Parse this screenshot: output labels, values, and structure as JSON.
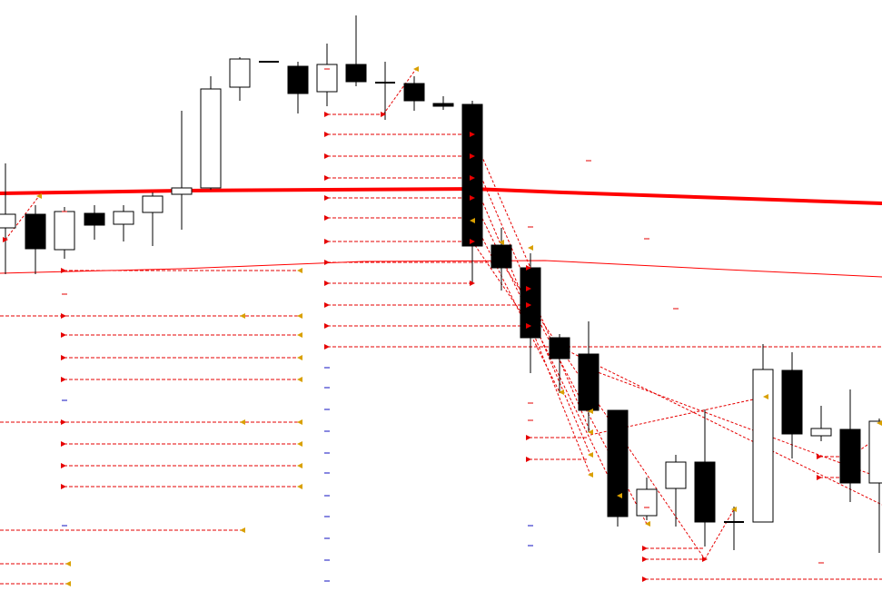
{
  "chart_data": {
    "type": "candlestick",
    "title": "",
    "xlabel": "",
    "ylabel": "",
    "grid": false,
    "legend": "none",
    "ylim": [
      0,
      651
    ],
    "candles": [
      {
        "x": 6,
        "open": 400,
        "close": 415,
        "high": 471,
        "low": 349
      },
      {
        "x": 39,
        "open": 415,
        "close": 377,
        "high": 425,
        "low": 349
      },
      {
        "x": 71,
        "open": 376,
        "close": 418,
        "high": 423,
        "low": 366
      },
      {
        "x": 104,
        "open": 416,
        "close": 403,
        "high": 425,
        "low": 387
      },
      {
        "x": 136,
        "open": 404,
        "close": 418,
        "high": 425,
        "low": 385
      },
      {
        "x": 168,
        "open": 417,
        "close": 435,
        "high": 439,
        "low": 380
      },
      {
        "x": 200,
        "open": 437,
        "close": 444,
        "high": 529,
        "low": 398
      },
      {
        "x": 232,
        "open": 444,
        "close": 553,
        "high": 567,
        "low": 442
      },
      {
        "x": 264,
        "open": 555,
        "close": 586,
        "high": 588,
        "low": 540
      },
      {
        "x": 296,
        "open": 583,
        "close": 583,
        "high": 583,
        "low": 583
      },
      {
        "x": 328,
        "open": 578,
        "close": 548,
        "high": 583,
        "low": 526
      },
      {
        "x": 360,
        "open": 550,
        "close": 580,
        "high": 603,
        "low": 534
      },
      {
        "x": 392,
        "open": 580,
        "close": 561,
        "high": 634,
        "low": 556
      },
      {
        "x": 424,
        "open": 560,
        "close": 560,
        "high": 583,
        "low": 519
      },
      {
        "x": 456,
        "open": 559,
        "close": 540,
        "high": 567,
        "low": 529
      },
      {
        "x": 488,
        "open": 537,
        "close": 534,
        "high": 545,
        "low": 530
      },
      {
        "x": 520,
        "open": 536,
        "close": 380,
        "high": 540,
        "low": 340
      },
      {
        "x": 552,
        "open": 381,
        "close": 356,
        "high": 400,
        "low": 331
      },
      {
        "x": 584,
        "open": 356,
        "close": 279,
        "high": 372,
        "low": 240
      },
      {
        "x": 616,
        "open": 279,
        "close": 256,
        "high": 283,
        "low": 218
      },
      {
        "x": 648,
        "open": 261,
        "close": 199,
        "high": 297,
        "low": 175
      },
      {
        "x": 680,
        "open": 199,
        "close": 82,
        "high": 199,
        "low": 71
      },
      {
        "x": 712,
        "open": 83,
        "close": 112,
        "high": 125,
        "low": 78
      },
      {
        "x": 744,
        "open": 113,
        "close": 142,
        "high": 150,
        "low": 71
      },
      {
        "x": 776,
        "open": 142,
        "close": 76,
        "high": 200,
        "low": 49
      },
      {
        "x": 808,
        "open": 76,
        "close": 76,
        "high": 93,
        "low": 45
      },
      {
        "x": 840,
        "open": 76,
        "close": 244,
        "high": 272,
        "low": 76
      },
      {
        "x": 872,
        "open": 243,
        "close": 173,
        "high": 263,
        "low": 146
      },
      {
        "x": 904,
        "open": 171,
        "close": 179,
        "high": 204,
        "low": 165
      },
      {
        "x": 936,
        "open": 178,
        "close": 119,
        "high": 222,
        "low": 98
      },
      {
        "x": 968,
        "open": 119,
        "close": 187,
        "high": 190,
        "low": 42
      }
    ],
    "series": [
      {
        "style": "thick",
        "x": [
          0,
          200,
          520,
          620,
          971
        ],
        "y": [
          438,
          441,
          443,
          439,
          427
        ]
      },
      {
        "style": "thin",
        "x": [
          0,
          200,
          400,
          600,
          800,
          971
        ],
        "y": [
          350,
          355,
          363,
          364,
          354,
          346
        ]
      }
    ],
    "levels": [
      {
        "y": 525,
        "x1": 360,
        "x2": 424
      },
      {
        "y": 503,
        "x1": 360,
        "x2": 520
      },
      {
        "y": 479,
        "x1": 360,
        "x2": 520
      },
      {
        "y": 455,
        "x1": 360,
        "x2": 520
      },
      {
        "y": 433,
        "x1": 360,
        "x2": 520
      },
      {
        "y": 411,
        "x1": 360,
        "x2": 520
      },
      {
        "y": 385,
        "x1": 360,
        "x2": 520
      },
      {
        "y": 362,
        "x1": 360,
        "x2": 552
      },
      {
        "y": 339,
        "x1": 360,
        "x2": 520
      },
      {
        "y": 315,
        "x1": 360,
        "x2": 584
      },
      {
        "y": 292,
        "x1": 360,
        "x2": 584
      },
      {
        "y": 269,
        "x1": 360,
        "x2": 971
      },
      {
        "y": 353,
        "x1": 70,
        "x2": 330
      },
      {
        "y": 303,
        "x1": 0,
        "x2": 330
      },
      {
        "y": 282,
        "x1": 70,
        "x2": 330
      },
      {
        "y": 257,
        "x1": 70,
        "x2": 330
      },
      {
        "y": 233,
        "x1": 70,
        "x2": 330
      },
      {
        "y": 186,
        "x1": 0,
        "x2": 330
      },
      {
        "y": 162,
        "x1": 70,
        "x2": 330
      },
      {
        "y": 138,
        "x1": 70,
        "x2": 330
      },
      {
        "y": 115,
        "x1": 70,
        "x2": 330
      },
      {
        "y": 67,
        "x1": 0,
        "x2": 267
      },
      {
        "y": 30,
        "x1": 0,
        "x2": 75
      },
      {
        "y": 8,
        "x1": 0,
        "x2": 75
      },
      {
        "y": 169,
        "x1": 582,
        "x2": 648
      },
      {
        "y": 145,
        "x1": 582,
        "x2": 648
      },
      {
        "y": 47,
        "x1": 710,
        "x2": 776
      },
      {
        "y": 35,
        "x1": 710,
        "x2": 776
      },
      {
        "y": 13,
        "x1": 710,
        "x2": 971
      },
      {
        "y": 148,
        "x1": 902,
        "x2": 940
      },
      {
        "y": 125,
        "x1": 902,
        "x2": 940
      }
    ],
    "markers_left": [
      {
        "x": 360,
        "y": 525
      },
      {
        "x": 360,
        "y": 503
      },
      {
        "x": 360,
        "y": 479
      },
      {
        "x": 360,
        "y": 455
      },
      {
        "x": 360,
        "y": 433
      },
      {
        "x": 360,
        "y": 411
      },
      {
        "x": 360,
        "y": 385
      },
      {
        "x": 360,
        "y": 362
      },
      {
        "x": 360,
        "y": 339
      },
      {
        "x": 360,
        "y": 315
      },
      {
        "x": 360,
        "y": 292
      },
      {
        "x": 360,
        "y": 269
      },
      {
        "x": 422,
        "y": 525
      },
      {
        "x": 520,
        "y": 503
      },
      {
        "x": 520,
        "y": 479
      },
      {
        "x": 520,
        "y": 455
      },
      {
        "x": 520,
        "y": 433
      },
      {
        "x": 520,
        "y": 385
      },
      {
        "x": 520,
        "y": 339
      },
      {
        "x": 582,
        "y": 315
      },
      {
        "x": 582,
        "y": 292
      },
      {
        "x": 582,
        "y": 169
      },
      {
        "x": 582,
        "y": 145
      },
      {
        "x": 70,
        "y": 353
      },
      {
        "x": 70,
        "y": 303
      },
      {
        "x": 70,
        "y": 282
      },
      {
        "x": 70,
        "y": 257
      },
      {
        "x": 70,
        "y": 233
      },
      {
        "x": 70,
        "y": 186
      },
      {
        "x": 70,
        "y": 162
      },
      {
        "x": 70,
        "y": 138
      },
      {
        "x": 70,
        "y": 115
      },
      {
        "x": 6,
        "y": 387
      },
      {
        "x": 710,
        "y": 47
      },
      {
        "x": 710,
        "y": 35
      },
      {
        "x": 710,
        "y": 13
      },
      {
        "x": 902,
        "y": 148
      },
      {
        "x": 902,
        "y": 125
      },
      {
        "x": 582,
        "y": 356
      },
      {
        "x": 582,
        "y": 333
      },
      {
        "x": 582,
        "y": 315
      },
      {
        "x": 582,
        "y": 292
      },
      {
        "x": 776,
        "y": 35
      }
    ],
    "markers_right": [
      {
        "x": 330,
        "y": 353
      },
      {
        "x": 330,
        "y": 303
      },
      {
        "x": 330,
        "y": 282
      },
      {
        "x": 330,
        "y": 257
      },
      {
        "x": 330,
        "y": 233
      },
      {
        "x": 330,
        "y": 186
      },
      {
        "x": 330,
        "y": 162
      },
      {
        "x": 330,
        "y": 138
      },
      {
        "x": 330,
        "y": 115
      },
      {
        "x": 267,
        "y": 303
      },
      {
        "x": 267,
        "y": 186
      },
      {
        "x": 267,
        "y": 67
      },
      {
        "x": 75,
        "y": 30
      },
      {
        "x": 75,
        "y": 8
      },
      {
        "x": 520,
        "y": 408
      },
      {
        "x": 682,
        "y": 105
      },
      {
        "x": 843,
        "y": 214
      },
      {
        "x": 968,
        "y": 185
      },
      {
        "x": 650,
        "y": 198
      },
      {
        "x": 650,
        "y": 175
      },
      {
        "x": 650,
        "y": 150
      },
      {
        "x": 650,
        "y": 128
      },
      {
        "x": 618,
        "y": 219
      },
      {
        "x": 584,
        "y": 378
      },
      {
        "x": 552,
        "y": 384
      },
      {
        "x": 713,
        "y": 74
      },
      {
        "x": 808,
        "y": 90
      },
      {
        "x": 458,
        "y": 575
      },
      {
        "x": 43,
        "y": 435
      }
    ],
    "dashes_red": [
      {
        "x": 71,
        "y": 327
      },
      {
        "x": 71,
        "y": 210
      },
      {
        "x": 71,
        "y": 72
      },
      {
        "x": 360,
        "y": 575
      },
      {
        "x": 648,
        "y": 474
      },
      {
        "x": 712,
        "y": 388
      },
      {
        "x": 744,
        "y": 311
      },
      {
        "x": 584,
        "y": 401
      },
      {
        "x": 584,
        "y": 207
      },
      {
        "x": 584,
        "y": 188
      },
      {
        "x": 712,
        "y": 92
      },
      {
        "x": 904,
        "y": 31
      },
      {
        "x": 71,
        "y": 418
      }
    ],
    "dashes_blue": [
      {
        "x": 360,
        "y": 246
      },
      {
        "x": 360,
        "y": 224
      },
      {
        "x": 360,
        "y": 200
      },
      {
        "x": 360,
        "y": 176
      },
      {
        "x": 360,
        "y": 152
      },
      {
        "x": 360,
        "y": 130
      },
      {
        "x": 360,
        "y": 105
      },
      {
        "x": 360,
        "y": 82
      },
      {
        "x": 360,
        "y": 58
      },
      {
        "x": 360,
        "y": 34
      },
      {
        "x": 360,
        "y": 11
      },
      {
        "x": 71,
        "y": 210
      },
      {
        "x": 71,
        "y": 72
      },
      {
        "x": 584,
        "y": 72
      },
      {
        "x": 584,
        "y": 50
      }
    ],
    "trend_lines": [
      {
        "x1": 520,
        "y1": 503,
        "x2": 584,
        "y2": 356
      },
      {
        "x1": 520,
        "y1": 479,
        "x2": 650,
        "y2": 175
      },
      {
        "x1": 520,
        "y1": 455,
        "x2": 650,
        "y2": 150
      },
      {
        "x1": 520,
        "y1": 433,
        "x2": 680,
        "y2": 105
      },
      {
        "x1": 520,
        "y1": 411,
        "x2": 616,
        "y2": 219
      },
      {
        "x1": 520,
        "y1": 385,
        "x2": 584,
        "y2": 292
      },
      {
        "x1": 584,
        "y1": 315,
        "x2": 712,
        "y2": 74
      },
      {
        "x1": 584,
        "y1": 292,
        "x2": 650,
        "y2": 128
      },
      {
        "x1": 552,
        "y1": 362,
        "x2": 776,
        "y2": 35
      },
      {
        "x1": 616,
        "y1": 269,
        "x2": 971,
        "y2": 95
      },
      {
        "x1": 650,
        "y1": 244,
        "x2": 971,
        "y2": 124
      },
      {
        "x1": 650,
        "y1": 172,
        "x2": 843,
        "y2": 214
      },
      {
        "x1": 776,
        "y1": 35,
        "x2": 808,
        "y2": 90
      },
      {
        "x1": 422,
        "y1": 525,
        "x2": 458,
        "y2": 575
      },
      {
        "x1": 6,
        "y1": 387,
        "x2": 43,
        "y2": 435
      },
      {
        "x1": 520,
        "y1": 339,
        "x2": 520,
        "y2": 360
      },
      {
        "x1": 936,
        "y1": 148,
        "x2": 968,
        "y2": 170
      }
    ]
  }
}
